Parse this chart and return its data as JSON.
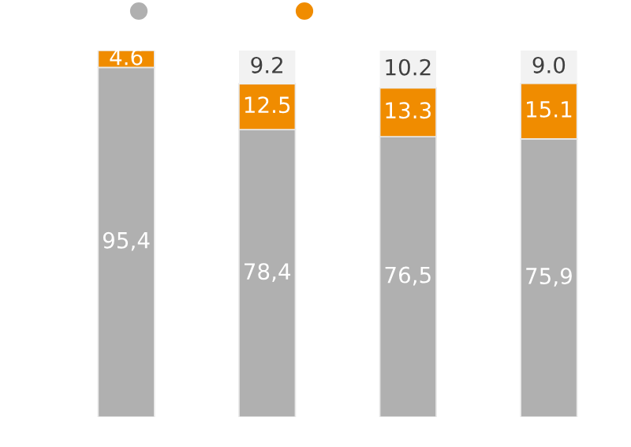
{
  "chart_data": {
    "type": "bar",
    "stacked": true,
    "categories": [
      null,
      null,
      null,
      null
    ],
    "ylim": [
      0,
      100
    ],
    "tick_labels": false,
    "grid": false,
    "series": [
      {
        "color": "#b0b0b0",
        "values": [
          95.4,
          78.4,
          76.5,
          75.9
        ],
        "value_labels": [
          "95,4",
          "78,4",
          "76,5",
          "75,9"
        ]
      },
      {
        "color": "#f08c00",
        "values": [
          4.6,
          12.5,
          13.3,
          15.1
        ],
        "value_labels": [
          "4.6",
          "12.5",
          "13.3",
          "15.1"
        ]
      },
      {
        "color": "#f2f2f2",
        "values": [
          null,
          9.2,
          10.2,
          9.0
        ],
        "value_labels": [
          null,
          "9.2",
          "10.2",
          "9.0"
        ]
      }
    ]
  }
}
